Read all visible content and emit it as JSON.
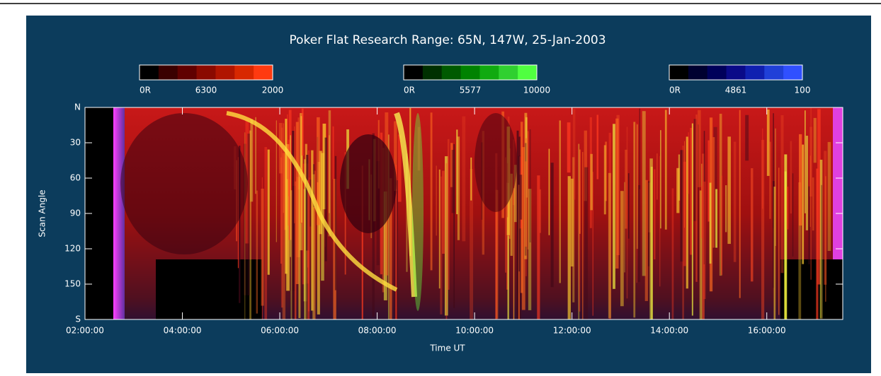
{
  "chart_data": {
    "type": "keogram",
    "title": "Poker Flat Research Range: 65N, 147W, 25-Jan-2003",
    "x_label": "Time UT",
    "y_label": "Scan Angle",
    "xlim": [
      2,
      17.56
    ],
    "xticks": [
      {
        "value": 2,
        "label": "02:00:00"
      },
      {
        "value": 4,
        "label": "04:00:00"
      },
      {
        "value": 6,
        "label": "06:00:00"
      },
      {
        "value": 8,
        "label": "08:00:00"
      },
      {
        "value": 10,
        "label": "10:00:00"
      },
      {
        "value": 12,
        "label": "12:00:00"
      },
      {
        "value": 14,
        "label": "14:00:00"
      },
      {
        "value": 16,
        "label": "16:00:00"
      }
    ],
    "ylim": [
      0,
      180
    ],
    "y_inverted": true,
    "yticks": [
      {
        "value": 0,
        "label": "N"
      },
      30,
      60,
      90,
      120,
      150,
      {
        "value": 180,
        "label": "S"
      }
    ],
    "colorbars": [
      {
        "min_label": "0R",
        "name": "6300",
        "max_label": "2000",
        "colors": [
          "#000000",
          "#3a0000",
          "#600000",
          "#8a0a00",
          "#b01500",
          "#d82800",
          "#ff3a10"
        ]
      },
      {
        "min_label": "0R",
        "name": "5577",
        "max_label": "10000",
        "colors": [
          "#000000",
          "#003000",
          "#005a00",
          "#008200",
          "#10aa10",
          "#30d030",
          "#50ff40"
        ]
      },
      {
        "min_label": "0R",
        "name": "4861",
        "max_label": "100",
        "colors": [
          "#000000",
          "#000030",
          "#00005a",
          "#0a0a88",
          "#1020b0",
          "#2040d8",
          "#3050ff"
        ]
      }
    ]
  }
}
